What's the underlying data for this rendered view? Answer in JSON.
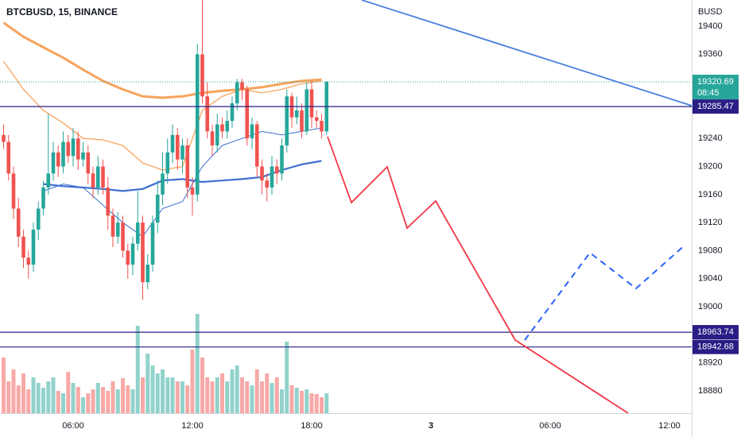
{
  "chart_data": {
    "type": "candlestick",
    "title": "BTCBUSD, 15, BINANCE",
    "y_axis_label": "BUSD",
    "up_color": "#26a69a",
    "down_color": "#ef5350",
    "x": [
      2.5,
      2.75,
      3,
      3.25,
      3.5,
      3.75,
      4,
      4.25,
      4.5,
      4.75,
      5,
      5.25,
      5.5,
      5.75,
      6,
      6.25,
      6.5,
      6.75,
      7,
      7.25,
      7.5,
      7.75,
      8,
      8.25,
      8.5,
      8.75,
      9,
      9.25,
      9.5,
      9.75,
      10,
      10.25,
      10.5,
      10.75,
      11,
      11.25,
      11.5,
      11.75,
      12,
      12.25,
      12.5,
      12.75,
      13,
      13.25,
      13.5,
      13.75,
      14,
      14.25,
      14.5,
      14.75,
      15,
      15.25,
      15.5,
      15.75,
      16,
      16.25,
      16.5,
      16.75,
      17,
      17.25,
      17.5,
      17.75,
      18,
      18.25,
      18.5,
      18.75
    ],
    "open": [
      19245,
      19235,
      19190,
      19140,
      19100,
      19070,
      19060,
      19110,
      19140,
      19170,
      19190,
      19220,
      19200,
      19235,
      19215,
      19240,
      19210,
      19220,
      19190,
      19170,
      19200,
      19170,
      19130,
      19100,
      19120,
      19080,
      19060,
      19090,
      19120,
      19035,
      19060,
      19120,
      19160,
      19190,
      19220,
      19245,
      19210,
      19230,
      19170,
      19160,
      19360,
      19300,
      19250,
      19230,
      19260,
      19250,
      19265,
      19290,
      19320,
      19310,
      19240,
      19260,
      19200,
      19180,
      19170,
      19200,
      19190,
      19230,
      19300,
      19270,
      19280,
      19250,
      19310,
      19270,
      19265,
      19250
    ],
    "high": [
      19260,
      19245,
      19200,
      19155,
      19110,
      19080,
      19120,
      19150,
      19180,
      19275,
      19235,
      19230,
      19250,
      19245,
      19255,
      19250,
      19235,
      19230,
      19200,
      19215,
      19210,
      19185,
      19140,
      19135,
      19130,
      19090,
      19100,
      19165,
      19130,
      19075,
      19130,
      19180,
      19220,
      19240,
      19260,
      19255,
      19240,
      19240,
      19185,
      19375,
      19437,
      19320,
      19260,
      19275,
      19270,
      19280,
      19300,
      19325,
      19325,
      19315,
      19270,
      19265,
      19210,
      19190,
      19215,
      19210,
      19240,
      19310,
      19305,
      19300,
      19290,
      19320,
      19322,
      19280,
      19275,
      19322
    ],
    "low": [
      19225,
      19180,
      19125,
      19085,
      19055,
      19040,
      19050,
      19095,
      19130,
      19160,
      19180,
      19185,
      19190,
      19205,
      19200,
      19195,
      19200,
      19175,
      19155,
      19160,
      19160,
      19110,
      19085,
      19090,
      19070,
      19040,
      19045,
      19080,
      19010,
      19025,
      19050,
      19105,
      19145,
      19175,
      19205,
      19195,
      19190,
      19155,
      19130,
      19150,
      19290,
      19240,
      19215,
      19220,
      19240,
      19240,
      19255,
      19280,
      19295,
      19230,
      19225,
      19185,
      19160,
      19150,
      19160,
      19175,
      19180,
      19220,
      19255,
      19260,
      19240,
      19245,
      19255,
      19255,
      19240,
      19245
    ],
    "close": [
      19235,
      19190,
      19140,
      19100,
      19070,
      19060,
      19110,
      19140,
      19170,
      19190,
      19220,
      19200,
      19235,
      19215,
      19240,
      19210,
      19220,
      19190,
      19170,
      19200,
      19170,
      19130,
      19100,
      19120,
      19080,
      19060,
      19090,
      19120,
      19035,
      19060,
      19120,
      19160,
      19190,
      19220,
      19245,
      19210,
      19230,
      19170,
      19160,
      19360,
      19300,
      19250,
      19230,
      19260,
      19250,
      19265,
      19290,
      19320,
      19310,
      19240,
      19260,
      19200,
      19180,
      19170,
      19200,
      19190,
      19230,
      19300,
      19270,
      19280,
      19250,
      19310,
      19270,
      19265,
      19250,
      19320.69
    ],
    "volume": [
      70,
      40,
      55,
      35,
      50,
      30,
      45,
      38,
      32,
      40,
      45,
      28,
      25,
      52,
      38,
      33,
      20,
      25,
      30,
      38,
      33,
      28,
      40,
      30,
      44,
      35,
      30,
      110,
      45,
      75,
      60,
      50,
      55,
      45,
      45,
      40,
      40,
      35,
      80,
      125,
      70,
      45,
      40,
      45,
      50,
      40,
      55,
      60,
      45,
      40,
      35,
      55,
      40,
      50,
      38,
      45,
      30,
      90,
      35,
      32,
      28,
      30,
      25,
      24,
      20,
      25
    ],
    "countdown": "08:45",
    "xlim": [
      2.32,
      37.12
    ],
    "xticks": [
      {
        "value": 6,
        "label": "06:00"
      },
      {
        "value": 12,
        "label": "12:00"
      },
      {
        "value": 18,
        "label": "18:00"
      },
      {
        "value": 24,
        "label": "3"
      },
      {
        "value": 30,
        "label": "06:00"
      },
      {
        "value": 36,
        "label": "12:00"
      }
    ],
    "ylim": [
      18814.3,
      19437.4
    ],
    "yticks": [
      18880,
      18920,
      19000,
      19040,
      19080,
      19120,
      19160,
      19200,
      19240,
      19360,
      19400
    ],
    "levels": [
      19285.47,
      18963.74,
      18942.68
    ],
    "level_color": "#2b1d86",
    "indicators": {
      "x": [
        2.5,
        3.5,
        4.5,
        5.5,
        6.5,
        7.5,
        8.5,
        9.5,
        10.5,
        11.5,
        12.5,
        13.5,
        14.5,
        15.5,
        16.5,
        17.5,
        18.5
      ],
      "series": [
        {
          "color": "#f7a35c",
          "width": 3,
          "values": [
            19405,
            19385,
            19370,
            19355,
            19338,
            19322,
            19310,
            19300,
            19298,
            19300,
            19305,
            19308,
            19310,
            19313,
            19318,
            19322,
            19324
          ]
        },
        {
          "color": "#f7a35c",
          "width": 1.3,
          "values": [
            19350,
            19310,
            19280,
            19262,
            19240,
            19238,
            19230,
            19205,
            19195,
            19200,
            19280,
            19300,
            19310,
            19305,
            19310,
            19318,
            19322
          ]
        },
        {
          "color": "#3f6fd0",
          "width": 2.2,
          "values": [
            null,
            null,
            19175,
            19172,
            19170,
            19168,
            19165,
            19168,
            19180,
            19182,
            19178,
            19180,
            19182,
            19185,
            19195,
            19203,
            19208
          ]
        },
        {
          "color": "#3f6fd0",
          "width": 1,
          "values": [
            null,
            null,
            19165,
            19175,
            19170,
            19145,
            19120,
            19100,
            19140,
            19150,
            19200,
            19230,
            19240,
            19250,
            19245,
            19250,
            19255
          ]
        }
      ]
    },
    "drawings": [
      {
        "color": "#4a7fdc",
        "dashed": false,
        "x": [
          20.52,
          37.12
        ],
        "values": [
          19437.4,
          19286.7
        ]
      },
      {
        "color": "#f23645",
        "dashed": false,
        "x": [
          18.8,
          20.0,
          21.8,
          22.8,
          24.24,
          28.24,
          33.92
        ],
        "values": [
          19242.5,
          19148.5,
          19199.5,
          19112.3,
          19150.8,
          18952.5,
          18848.3
        ]
      },
      {
        "color": "#2962ff",
        "dashed": true,
        "x": [
          28.72,
          32.0,
          34.32,
          36.8
        ],
        "values": [
          18952.5,
          19077,
          19026,
          19088.5
        ]
      }
    ]
  }
}
